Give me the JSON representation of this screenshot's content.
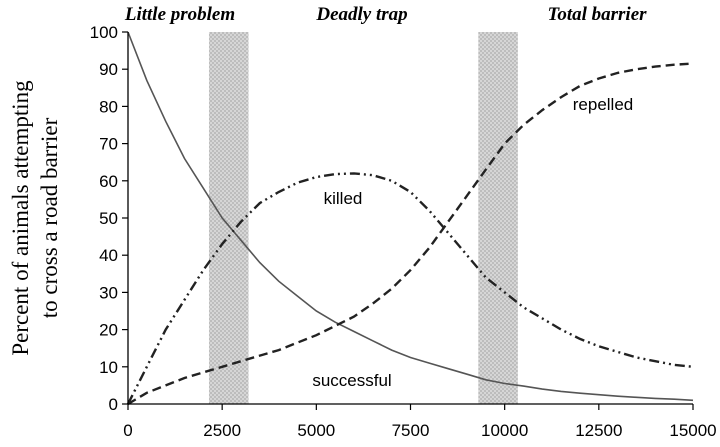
{
  "chart_data": {
    "type": "line",
    "title": "",
    "ylabel_lines": [
      "Percent of animals attempting",
      "to cross a road barrier"
    ],
    "xlabel": "",
    "xlim": [
      0,
      15000
    ],
    "ylim": [
      0,
      100
    ],
    "x_ticks": [
      0,
      2500,
      5000,
      7500,
      10000,
      12500,
      15000
    ],
    "y_ticks": [
      0,
      10,
      20,
      30,
      40,
      50,
      60,
      70,
      80,
      90,
      100
    ],
    "grid": false,
    "regions": [
      {
        "label": "Little problem"
      },
      {
        "label": "Deadly trap"
      },
      {
        "label": "Total barrier"
      }
    ],
    "shaded_bands": [
      {
        "x_start": 2150,
        "x_end": 3200
      },
      {
        "x_start": 9300,
        "x_end": 10350
      }
    ],
    "x": [
      0,
      500,
      1000,
      1500,
      2000,
      2500,
      3000,
      3500,
      4000,
      4500,
      5000,
      5500,
      6000,
      6500,
      7000,
      7500,
      8000,
      8500,
      9000,
      9500,
      10000,
      10500,
      11000,
      11500,
      12000,
      12500,
      13000,
      13500,
      14000,
      14500,
      15000
    ],
    "series": [
      {
        "name": "successful",
        "style": "solid",
        "color": "#555555",
        "values": [
          100,
          87,
          76,
          66,
          58,
          50,
          44,
          38,
          33,
          29,
          25,
          22,
          19.5,
          17,
          14.5,
          12.5,
          11,
          9.5,
          8,
          6.5,
          5.5,
          4.8,
          4,
          3.4,
          2.9,
          2.5,
          2.1,
          1.8,
          1.5,
          1.3,
          1
        ]
      },
      {
        "name": "killed",
        "style": "dashdotdot",
        "color": "#222222",
        "values": [
          0,
          10,
          20,
          28,
          36,
          43,
          49,
          54,
          57,
          59.5,
          61,
          61.8,
          62,
          61.5,
          60,
          57,
          52,
          46,
          40,
          34,
          30,
          26,
          23,
          20,
          17.5,
          15.5,
          14,
          12.5,
          11.5,
          10.5,
          10
        ]
      },
      {
        "name": "repelled",
        "style": "dashed",
        "color": "#222222",
        "values": [
          0,
          3,
          5,
          7,
          8.5,
          10,
          11.5,
          13,
          14.5,
          16.5,
          18.5,
          21,
          23.5,
          27,
          31,
          36,
          42,
          49,
          56,
          63,
          70,
          75,
          79,
          82.5,
          85.5,
          87.5,
          89,
          90,
          90.7,
          91.2,
          91.5
        ]
      }
    ]
  }
}
